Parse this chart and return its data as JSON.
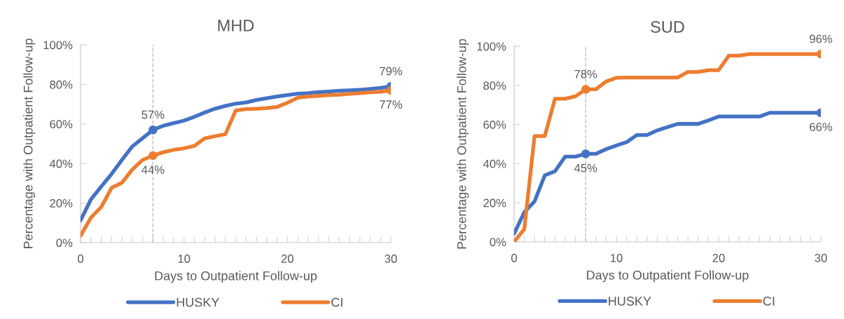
{
  "chart_data": [
    {
      "type": "line",
      "title": "MHD",
      "xlabel": "Days to Outpatient Follow-up",
      "ylabel": "Percentage with Outpatient Follow-up",
      "x": [
        0,
        1,
        2,
        3,
        4,
        5,
        6,
        7,
        8,
        9,
        10,
        11,
        12,
        13,
        14,
        15,
        16,
        17,
        18,
        19,
        20,
        21,
        22,
        23,
        24,
        25,
        26,
        27,
        28,
        29,
        30
      ],
      "xlim": [
        0,
        30
      ],
      "xticks": [
        0,
        {
          "value": 1,
          "label": null
        },
        {
          "value": 2,
          "label": null
        },
        {
          "value": 3,
          "label": null
        },
        {
          "value": 4,
          "label": null
        },
        {
          "value": 5,
          "label": null
        },
        {
          "value": 6,
          "label": null
        },
        {
          "value": 7,
          "label": null
        },
        {
          "value": 8,
          "label": null
        },
        {
          "value": 9,
          "label": null
        },
        10,
        {
          "value": 11,
          "label": null
        },
        {
          "value": 12,
          "label": null
        },
        {
          "value": 13,
          "label": null
        },
        {
          "value": 14,
          "label": null
        },
        {
          "value": 15,
          "label": null
        },
        {
          "value": 16,
          "label": null
        },
        {
          "value": 17,
          "label": null
        },
        {
          "value": 18,
          "label": null
        },
        {
          "value": 19,
          "label": null
        },
        20,
        {
          "value": 21,
          "label": null
        },
        {
          "value": 22,
          "label": null
        },
        {
          "value": 23,
          "label": null
        },
        {
          "value": 24,
          "label": null
        },
        {
          "value": 25,
          "label": null
        },
        {
          "value": 26,
          "label": null
        },
        {
          "value": 27,
          "label": null
        },
        {
          "value": 28,
          "label": null
        },
        {
          "value": 29,
          "label": null
        },
        30
      ],
      "ylim": [
        0,
        100
      ],
      "yticks": [
        {
          "value": 0,
          "label": "0%"
        },
        {
          "value": 20,
          "label": "20%"
        },
        {
          "value": 40,
          "label": "40%"
        },
        {
          "value": 60,
          "label": "60%"
        },
        {
          "value": 80,
          "label": "80%"
        },
        {
          "value": 100,
          "label": "100%"
        }
      ],
      "legend": "bottom",
      "line_style": "solid",
      "ref_lines": [
        {
          "axis": "x",
          "value": 7,
          "color": "#bfbfbf",
          "line_style": "dashed"
        }
      ],
      "series": [
        {
          "name": "HUSKY",
          "color": "#4472c4",
          "values": [
            11.2,
            21.8,
            28.3,
            34.7,
            41.8,
            48.6,
            52.8,
            57,
            59.1,
            60.4,
            61.7,
            63.6,
            65.8,
            67.7,
            69.1,
            70.3,
            70.9,
            72.1,
            73,
            73.9,
            74.6,
            75.3,
            75.6,
            76.1,
            76.4,
            76.8,
            77,
            77.3,
            77.7,
            78.2,
            79
          ]
        },
        {
          "name": "CI",
          "color": "#ed7d31",
          "values": [
            3.5,
            12.6,
            18,
            27.7,
            30.3,
            36.9,
            41.8,
            44,
            45.7,
            46.9,
            47.7,
            48.9,
            52.7,
            53.8,
            54.8,
            66.8,
            67.5,
            67.7,
            68,
            68.6,
            70.7,
            73.3,
            73.9,
            74.2,
            74.6,
            74.8,
            75.2,
            75.6,
            76,
            76.3,
            77
          ]
        },
        {
          "type": "scatter",
          "marker": "circle",
          "color": "#4472c4",
          "values": [
            null,
            null,
            null,
            null,
            null,
            null,
            null,
            57,
            null,
            null,
            null,
            null,
            null,
            null,
            null,
            null,
            null,
            null,
            null,
            null,
            null,
            null,
            null,
            null,
            null,
            null,
            null,
            null,
            null,
            null,
            79
          ],
          "value_labels": [
            null,
            null,
            null,
            null,
            null,
            null,
            null,
            "57%",
            null,
            null,
            null,
            null,
            null,
            null,
            null,
            null,
            null,
            null,
            null,
            null,
            null,
            null,
            null,
            null,
            null,
            null,
            null,
            null,
            null,
            null,
            "79%"
          ]
        },
        {
          "type": "scatter",
          "marker": "circle",
          "color": "#ed7d31",
          "values": [
            null,
            null,
            null,
            null,
            null,
            null,
            null,
            44,
            null,
            null,
            null,
            null,
            null,
            null,
            null,
            null,
            null,
            null,
            null,
            null,
            null,
            null,
            null,
            null,
            null,
            null,
            null,
            null,
            null,
            null,
            77
          ],
          "value_labels": [
            null,
            null,
            null,
            null,
            null,
            null,
            null,
            "44%",
            null,
            null,
            null,
            null,
            null,
            null,
            null,
            null,
            null,
            null,
            null,
            null,
            null,
            null,
            null,
            null,
            null,
            null,
            null,
            null,
            null,
            null,
            "77%"
          ]
        }
      ]
    },
    {
      "type": "line",
      "title": "SUD",
      "xlabel": "Days to Outpatient Follow-up",
      "ylabel": "Percentage with Outpatient Follow-up",
      "x": [
        0,
        1,
        2,
        3,
        4,
        5,
        6,
        7,
        8,
        9,
        10,
        11,
        12,
        13,
        14,
        15,
        16,
        17,
        18,
        19,
        20,
        21,
        22,
        23,
        24,
        25,
        26,
        27,
        28,
        29,
        30
      ],
      "xlim": [
        0,
        30
      ],
      "xticks": [
        0,
        {
          "value": 1,
          "label": null
        },
        {
          "value": 2,
          "label": null
        },
        {
          "value": 3,
          "label": null
        },
        {
          "value": 4,
          "label": null
        },
        {
          "value": 5,
          "label": null
        },
        {
          "value": 6,
          "label": null
        },
        {
          "value": 7,
          "label": null
        },
        {
          "value": 8,
          "label": null
        },
        {
          "value": 9,
          "label": null
        },
        10,
        {
          "value": 11,
          "label": null
        },
        {
          "value": 12,
          "label": null
        },
        {
          "value": 13,
          "label": null
        },
        {
          "value": 14,
          "label": null
        },
        {
          "value": 15,
          "label": null
        },
        {
          "value": 16,
          "label": null
        },
        {
          "value": 17,
          "label": null
        },
        {
          "value": 18,
          "label": null
        },
        {
          "value": 19,
          "label": null
        },
        20,
        {
          "value": 21,
          "label": null
        },
        {
          "value": 22,
          "label": null
        },
        {
          "value": 23,
          "label": null
        },
        {
          "value": 24,
          "label": null
        },
        {
          "value": 25,
          "label": null
        },
        {
          "value": 26,
          "label": null
        },
        {
          "value": 27,
          "label": null
        },
        {
          "value": 28,
          "label": null
        },
        {
          "value": 29,
          "label": null
        },
        30
      ],
      "ylim": [
        0,
        100
      ],
      "yticks": [
        {
          "value": 0,
          "label": "0%"
        },
        {
          "value": 20,
          "label": "20%"
        },
        {
          "value": 40,
          "label": "40%"
        },
        {
          "value": 60,
          "label": "60%"
        },
        {
          "value": 80,
          "label": "80%"
        },
        {
          "value": 100,
          "label": "100%"
        }
      ],
      "legend": "bottom",
      "line_style": "solid",
      "ref_lines": [
        {
          "axis": "x",
          "value": 7,
          "color": "#bfbfbf",
          "line_style": "dashed"
        }
      ],
      "series": [
        {
          "name": "HUSKY",
          "color": "#4472c4",
          "values": [
            4.2,
            15.2,
            20.7,
            34,
            36.1,
            43.6,
            43.6,
            45,
            45,
            47.4,
            49.3,
            51,
            54.6,
            54.6,
            57,
            58.7,
            60.3,
            60.3,
            60.3,
            62.1,
            64.1,
            64.1,
            64.1,
            64.1,
            64.1,
            66,
            66,
            66,
            66,
            66,
            66
          ]
        },
        {
          "name": "CI",
          "color": "#ed7d31",
          "values": [
            0,
            6.6,
            54.1,
            54.1,
            73.2,
            73.2,
            74.4,
            78,
            78,
            82,
            83.9,
            84,
            84,
            84,
            84,
            84,
            84,
            86.9,
            86.9,
            87.8,
            87.8,
            95.2,
            95.2,
            96,
            96,
            96,
            96,
            96,
            96,
            96,
            96
          ]
        },
        {
          "type": "scatter",
          "marker": "circle",
          "color": "#4472c4",
          "values": [
            null,
            null,
            null,
            null,
            null,
            null,
            null,
            45,
            null,
            null,
            null,
            null,
            null,
            null,
            null,
            null,
            null,
            null,
            null,
            null,
            null,
            null,
            null,
            null,
            null,
            null,
            null,
            null,
            null,
            null,
            66
          ],
          "value_labels": [
            null,
            null,
            null,
            null,
            null,
            null,
            null,
            "45%",
            null,
            null,
            null,
            null,
            null,
            null,
            null,
            null,
            null,
            null,
            null,
            null,
            null,
            null,
            null,
            null,
            null,
            null,
            null,
            null,
            null,
            null,
            "66%"
          ]
        },
        {
          "type": "scatter",
          "marker": "circle",
          "color": "#ed7d31",
          "values": [
            null,
            null,
            null,
            null,
            null,
            null,
            null,
            78,
            null,
            null,
            null,
            null,
            null,
            null,
            null,
            null,
            null,
            null,
            null,
            null,
            null,
            null,
            null,
            null,
            null,
            null,
            null,
            null,
            null,
            null,
            96
          ],
          "value_labels": [
            null,
            null,
            null,
            null,
            null,
            null,
            null,
            "78%",
            null,
            null,
            null,
            null,
            null,
            null,
            null,
            null,
            null,
            null,
            null,
            null,
            null,
            null,
            null,
            null,
            null,
            null,
            null,
            null,
            null,
            null,
            "96%"
          ]
        }
      ]
    }
  ]
}
